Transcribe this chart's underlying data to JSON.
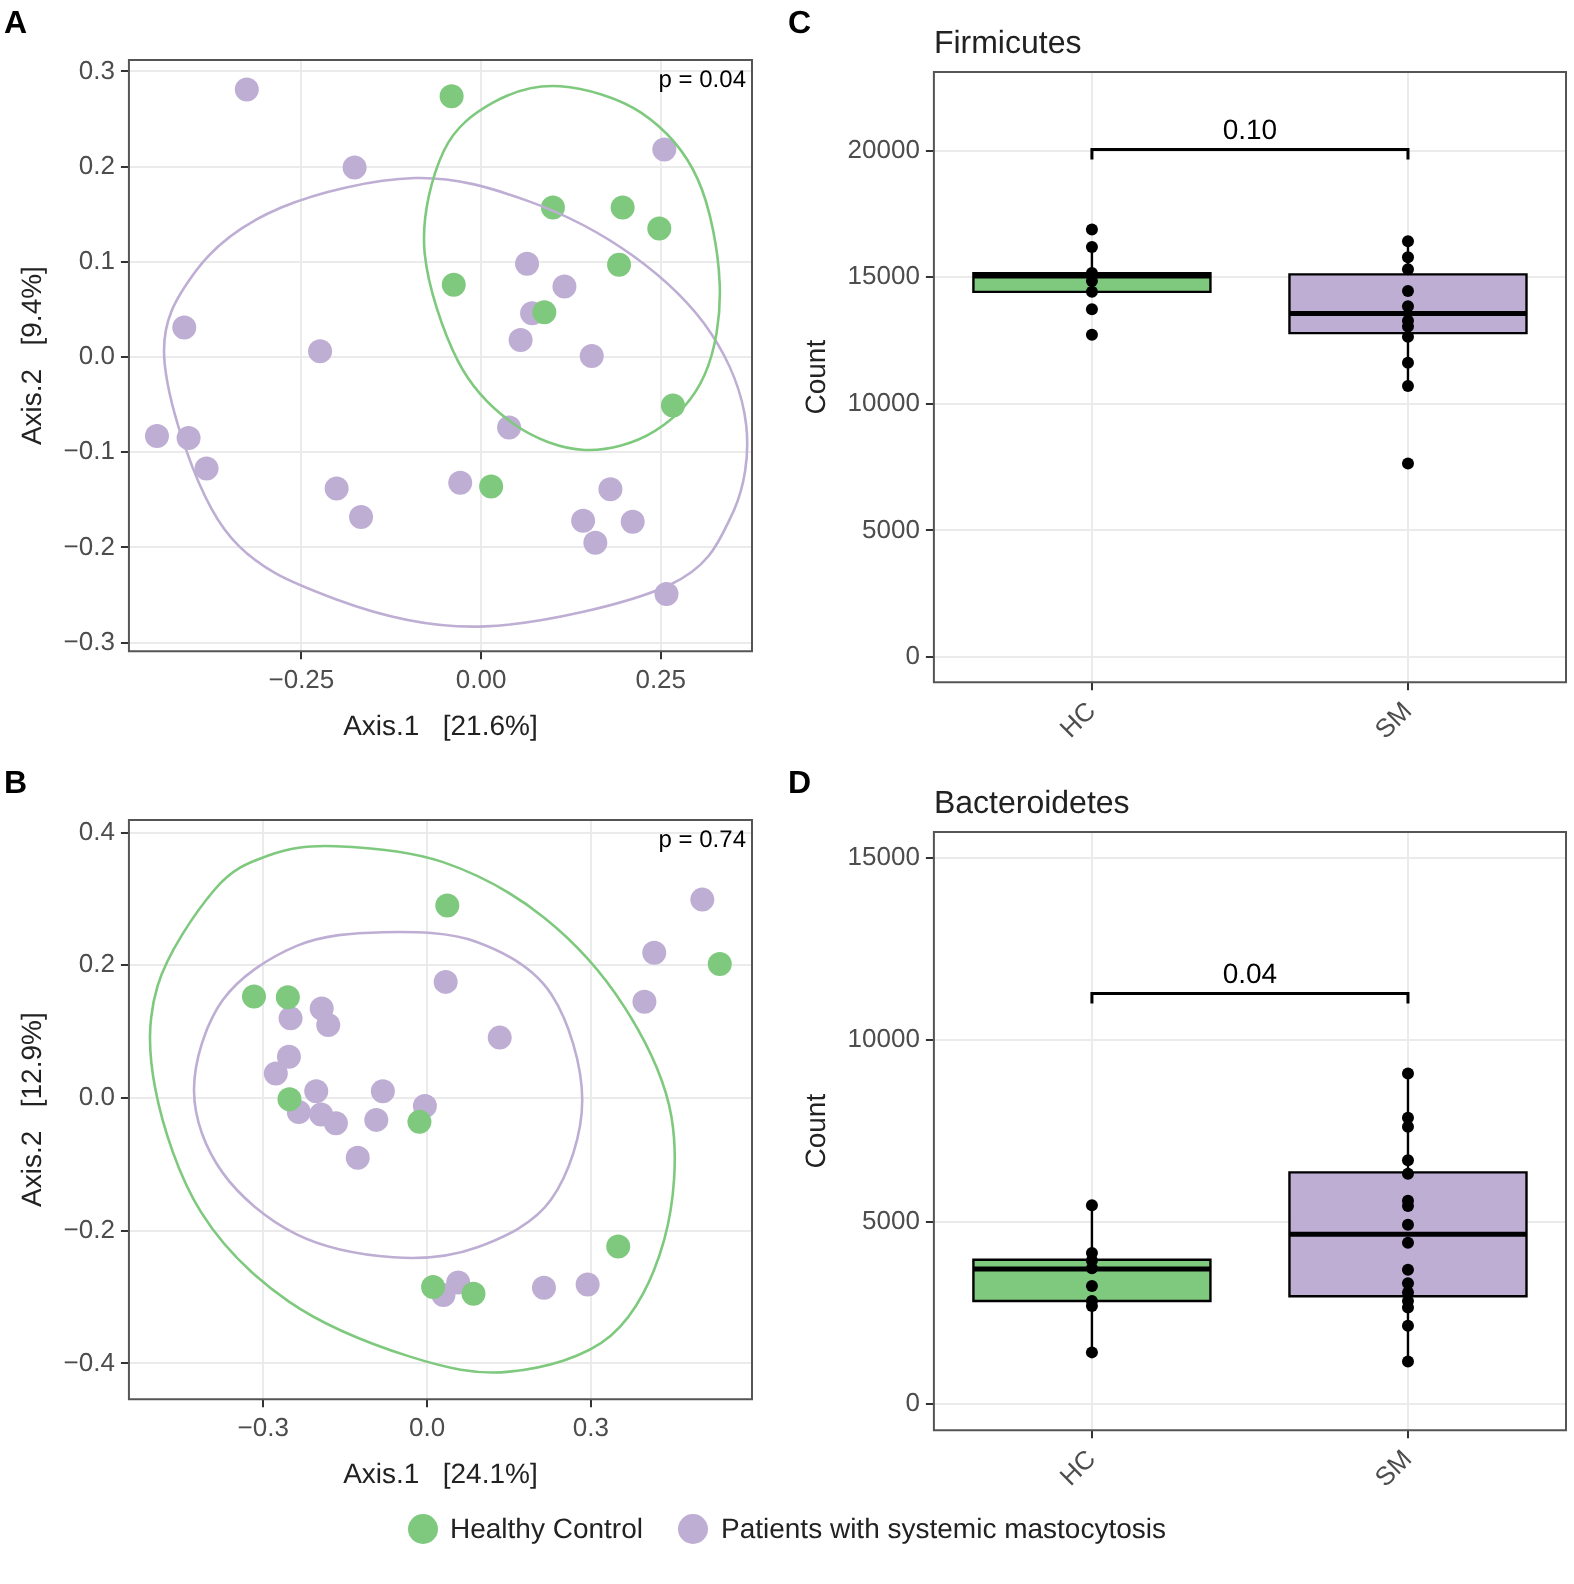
{
  "chart_data": [
    {
      "type": "scatter",
      "xlabel": "Axis.1   [21.6%]",
      "ylabel": "Axis.2   [9.4%]",
      "annotations": [
        "A",
        "p = 0.04"
      ],
      "marker": "circle",
      "legend": "bottom",
      "grid": true,
      "xlim": [
        -0.49,
        0.377
      ],
      "ylim": [
        -0.309,
        0.312
      ],
      "xticks": [
        {
          "value": -0.25,
          "label": "−0.25"
        },
        {
          "value": 0,
          "label": "0.00"
        },
        {
          "value": 0.25,
          "label": "0.25"
        }
      ],
      "yticks": [
        {
          "value": -0.3,
          "label": "−0.3"
        },
        {
          "value": -0.2,
          "label": "−0.2"
        },
        {
          "value": -0.1,
          "label": "−0.1"
        },
        {
          "value": 0,
          "label": "0.0"
        },
        {
          "value": 0.1,
          "label": "0.1"
        },
        {
          "value": 0.2,
          "label": "0.2"
        },
        {
          "value": 0.3,
          "label": "0.3"
        }
      ],
      "series": [
        {
          "name": "Healthy Control",
          "color": "#7fc97f",
          "x": [
            -0.041,
            0.1,
            0.197,
            0.248,
            0.192,
            -0.038,
            0.088,
            0.267,
            0.014
          ],
          "values": [
            0.274,
            0.157,
            0.157,
            0.135,
            0.097,
            0.076,
            0.047,
            -0.051,
            -0.136
          ]
        },
        {
          "name": "Patients with systemic mastocytosis",
          "color": "#beaed4",
          "x": [
            -0.326,
            -0.176,
            0.255,
            0.064,
            0.116,
            0.071,
            0.055,
            0.154,
            -0.413,
            -0.224,
            -0.451,
            -0.407,
            -0.382,
            -0.201,
            -0.167,
            -0.029,
            0.039,
            0.18,
            0.142,
            0.159,
            0.211,
            0.258
          ],
          "values": [
            0.281,
            0.199,
            0.218,
            0.098,
            0.074,
            0.046,
            0.018,
            0.001,
            0.031,
            0.006,
            -0.083,
            -0.085,
            -0.117,
            -0.138,
            -0.168,
            -0.132,
            -0.074,
            -0.139,
            -0.172,
            -0.195,
            -0.173,
            -0.249
          ]
        }
      ]
    },
    {
      "type": "scatter",
      "xlabel": "Axis.1   [24.1%]",
      "ylabel": "Axis.2   [12.9%]",
      "annotations": [
        "B",
        "p = 0.74"
      ],
      "marker": "circle",
      "grid": true,
      "xlim": [
        -0.546,
        0.595
      ],
      "ylim": [
        -0.454,
        0.419
      ],
      "xticks": [
        {
          "value": -0.3,
          "label": "−0.3"
        },
        {
          "value": 0,
          "label": "0.0"
        },
        {
          "value": 0.3,
          "label": "0.3"
        }
      ],
      "yticks": [
        {
          "value": -0.4,
          "label": "−0.4"
        },
        {
          "value": -0.2,
          "label": "−0.2"
        },
        {
          "value": 0,
          "label": "0.0"
        },
        {
          "value": 0.2,
          "label": "0.2"
        },
        {
          "value": 0.4,
          "label": "0.4"
        }
      ],
      "series": [
        {
          "color": "#7fc97f",
          "x": [
            -0.317,
            -0.255,
            0.037,
            0.536,
            -0.252,
            -0.014,
            0.35,
            0.011,
            0.085
          ],
          "values": [
            0.153,
            0.152,
            0.29,
            0.202,
            -0.002,
            -0.036,
            -0.224,
            -0.285,
            -0.295
          ]
        },
        {
          "color": "#beaed4",
          "x": [
            0.504,
            0.416,
            0.398,
            0.034,
            0.133,
            -0.193,
            -0.25,
            -0.181,
            -0.253,
            -0.277,
            -0.203,
            -0.081,
            -0.004,
            -0.235,
            -0.194,
            -0.167,
            -0.093,
            -0.127,
            0.03,
            0.057,
            0.214,
            0.294
          ],
          "values": [
            0.299,
            0.219,
            0.145,
            0.175,
            0.091,
            0.135,
            0.12,
            0.11,
            0.062,
            0.037,
            0.01,
            0.01,
            -0.012,
            -0.021,
            -0.025,
            -0.038,
            -0.033,
            -0.09,
            -0.297,
            -0.278,
            -0.286,
            -0.281
          ]
        }
      ]
    },
    {
      "type": "box",
      "title": "Firmicutes",
      "ylabel": "Count",
      "annotations": [
        "C",
        "0.10"
      ],
      "grid": true,
      "categories": [
        "HC",
        "SM"
      ],
      "colors": [
        "#7fc97f",
        "#beaed4"
      ],
      "boxes": [
        {
          "low": 14420,
          "q1": 14420,
          "median": 15050,
          "q3": 15160,
          "high": 16170
        },
        {
          "low": 10700,
          "q1": 12790,
          "median": 13560,
          "q3": 15110,
          "high": 16370
        }
      ],
      "ylim": [
        -1000,
        23100
      ],
      "yticks": [
        0,
        5000,
        10000,
        15000,
        20000
      ],
      "series": [
        {
          "type": "scatter",
          "color": "#000000",
          "x": [
            "HC",
            "HC",
            "HC",
            "HC",
            "HC",
            "HC",
            "HC",
            "SM",
            "SM",
            "SM",
            "SM",
            "SM",
            "SM",
            "SM",
            "SM",
            "SM",
            "SM",
            "SM"
          ],
          "values": [
            12730,
            13730,
            14420,
            14850,
            15160,
            16190,
            16880,
            7640,
            10700,
            11620,
            12650,
            13050,
            13280,
            13850,
            14450,
            15310,
            15790,
            16420
          ]
        }
      ]
    },
    {
      "type": "box",
      "title": "Bacteroidetes",
      "ylabel": "Count",
      "annotations": [
        "D",
        "0.04"
      ],
      "grid": true,
      "categories": [
        "HC",
        "SM"
      ],
      "colors": [
        "#7fc97f",
        "#beaed4"
      ],
      "boxes": [
        {
          "low": 1420,
          "q1": 2830,
          "median": 3710,
          "q3": 3960,
          "high": 5420
        },
        {
          "low": 1170,
          "q1": 2960,
          "median": 4660,
          "q3": 6360,
          "high": 9070
        }
      ],
      "ylim": [
        -720,
        15700
      ],
      "yticks": [
        0,
        5000,
        10000,
        15000
      ],
      "series": [
        {
          "type": "scatter",
          "color": "#000000",
          "x": [
            "HC",
            "HC",
            "HC",
            "HC",
            "HC",
            "HC",
            "HC",
            "HC",
            "SM",
            "SM",
            "SM",
            "SM",
            "SM",
            "SM",
            "SM",
            "SM",
            "SM",
            "SM",
            "SM",
            "SM",
            "SM",
            "SM",
            "SM",
            "SM"
          ],
          "values": [
            1420,
            2690,
            2830,
            3240,
            3730,
            3940,
            4150,
            5460,
            1170,
            2150,
            2650,
            2830,
            3060,
            3320,
            3690,
            4430,
            4920,
            5440,
            5580,
            6320,
            6690,
            7610,
            7860,
            9070
          ]
        }
      ]
    }
  ]
}
